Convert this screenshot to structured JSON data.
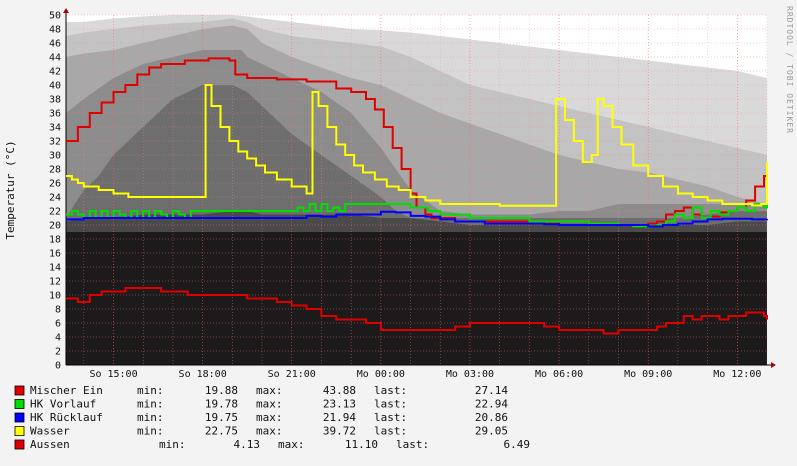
{
  "chart_data": {
    "type": "line",
    "title": "",
    "ylabel": "Temperatur (°C)",
    "xlabel": "",
    "watermark": "RRDTOOL / TOBI OETIKER",
    "ylim": [
      0,
      50
    ],
    "y_ticks": [
      0,
      2,
      4,
      6,
      8,
      10,
      12,
      14,
      16,
      18,
      20,
      22,
      24,
      26,
      28,
      30,
      32,
      34,
      36,
      38,
      40,
      42,
      44,
      46,
      48,
      50
    ],
    "x_range_hours": [
      13.4,
      13.0
    ],
    "x_ticks": [
      {
        "label": "So 15:00",
        "t": 15
      },
      {
        "label": "So 18:00",
        "t": 18
      },
      {
        "label": "So 21:00",
        "t": 21
      },
      {
        "label": "Mo 00:00",
        "t": 24
      },
      {
        "label": "Mo 03:00",
        "t": 27
      },
      {
        "label": "Mo 06:00",
        "t": 30
      },
      {
        "label": "Mo 09:00",
        "t": 33
      },
      {
        "label": "Mo 12:00",
        "t": 36
      }
    ],
    "x_start": 13.4,
    "x_end": 37.0,
    "grid": true,
    "legend_position": "bottom",
    "band_levels": [
      {
        "color": "#1c1a1b",
        "x": [
          13.4,
          37.0
        ],
        "y": [
          19,
          19
        ]
      },
      {
        "color": "#4a4a4a",
        "x": [
          13.4,
          14,
          15,
          16,
          17,
          18,
          19,
          19.5,
          20,
          21,
          22,
          23,
          24,
          25,
          26,
          27,
          28,
          29,
          30,
          31,
          32,
          33,
          34,
          35,
          36,
          37
        ],
        "y": [
          20.5,
          21,
          21,
          21.5,
          21.5,
          21.5,
          22,
          22,
          21.5,
          21.5,
          21.5,
          21.5,
          21,
          21,
          20.5,
          20,
          20,
          20,
          20,
          20,
          20,
          20,
          20,
          20,
          20.5,
          20.5
        ]
      },
      {
        "color": "#6e6e6e",
        "x": [
          13.4,
          14,
          14.5,
          15,
          15.5,
          16,
          16.5,
          17,
          17.5,
          18,
          18.5,
          19,
          19.5,
          20,
          20.5,
          21,
          22,
          23,
          24,
          24.5,
          25,
          26,
          27,
          28,
          29,
          30,
          31,
          32,
          33,
          34,
          35,
          36,
          37
        ],
        "y": [
          21,
          25,
          27,
          30,
          32,
          34,
          36,
          38,
          39,
          40,
          40,
          40,
          39,
          37,
          35,
          33,
          30,
          27,
          24,
          22,
          21,
          21,
          21,
          21,
          21,
          21,
          21,
          21,
          21,
          21,
          21.5,
          22,
          22
        ]
      },
      {
        "color": "#8c8c8c",
        "x": [
          13.4,
          14,
          15,
          16,
          17,
          18,
          19,
          19.3,
          19.5,
          20,
          21,
          22,
          23,
          24,
          25,
          26,
          27,
          28,
          29,
          30,
          31,
          32,
          33,
          34,
          35,
          36,
          37
        ],
        "y": [
          36,
          38,
          41,
          43,
          44,
          45,
          45,
          45,
          44,
          43,
          41,
          39,
          36,
          31,
          25,
          22,
          21.5,
          21.5,
          21.5,
          22,
          22,
          23,
          23,
          23,
          23,
          23,
          23
        ]
      },
      {
        "color": "#a8a8a8",
        "x": [
          13.4,
          14,
          15,
          16,
          17,
          18,
          19,
          19.5,
          20,
          21,
          22,
          23,
          24,
          25,
          26,
          27,
          28,
          29,
          30,
          31,
          32,
          33,
          34,
          35,
          36,
          37
        ],
        "y": [
          44,
          44.5,
          45,
          46,
          47,
          48,
          48.5,
          48,
          46,
          44,
          42.5,
          41,
          40,
          38,
          36,
          34.5,
          33,
          31.5,
          30,
          29,
          28,
          27.5,
          26.5,
          25.5,
          24,
          23
        ]
      },
      {
        "color": "#c3c3c3",
        "x": [
          13.4,
          14,
          15,
          16,
          17,
          18,
          19,
          19.5,
          20,
          21,
          22,
          23,
          24,
          25,
          26,
          27,
          28,
          29,
          30,
          31,
          32,
          33,
          34,
          35,
          36,
          37
        ],
        "y": [
          47,
          47.5,
          48,
          48.5,
          48.8,
          49,
          49.5,
          49,
          48,
          47,
          46.5,
          46,
          45.5,
          44,
          42,
          40,
          39,
          38,
          37,
          36,
          35,
          34,
          33,
          32,
          31,
          30
        ]
      },
      {
        "color": "#d9d9d9",
        "x": [
          13.4,
          14,
          15,
          16,
          17,
          18,
          19,
          19.5,
          20,
          21,
          22,
          23,
          24,
          25,
          26,
          27,
          28,
          29,
          30,
          31,
          32,
          33,
          34,
          35,
          36,
          37
        ],
        "y": [
          49,
          49,
          49.5,
          49.8,
          50,
          50,
          50,
          49.8,
          49.5,
          49,
          48.5,
          48,
          47.8,
          47.5,
          47,
          46.5,
          46,
          45.5,
          45,
          44.5,
          44,
          43.5,
          43,
          42.5,
          42,
          41
        ]
      }
    ],
    "series": [
      {
        "name": "Mischer Ein",
        "color": "#e00000",
        "x": [
          13.4,
          13.8,
          14.2,
          14.6,
          15.0,
          15.4,
          15.8,
          16.2,
          16.6,
          17.0,
          17.4,
          17.8,
          18.2,
          18.6,
          18.9,
          19.1,
          19.5,
          20,
          20.5,
          21,
          21.5,
          22,
          22.5,
          23,
          23.5,
          23.8,
          24.1,
          24.4,
          24.7,
          25.0,
          25.2,
          25.5,
          25.7,
          26,
          26.5,
          27,
          27.5,
          28,
          28.5,
          29,
          29.5,
          30,
          30.5,
          31,
          31.5,
          32,
          32.5,
          33,
          33.3,
          33.6,
          33.9,
          34.2,
          34.5,
          34.8,
          35.1,
          35.4,
          35.7,
          36.0,
          36.3,
          36.6,
          36.9,
          37.0
        ],
        "y": [
          32,
          34,
          36,
          37.5,
          39,
          40,
          41.5,
          42.5,
          43,
          43,
          43.5,
          43.5,
          43.8,
          43.8,
          43.5,
          41.5,
          41,
          41,
          40.8,
          40.8,
          40.5,
          40.5,
          39.5,
          39,
          38,
          36.5,
          34,
          31,
          28,
          24.5,
          22.5,
          21.5,
          21,
          21,
          20.5,
          20.5,
          20.5,
          20.5,
          20.5,
          20.2,
          20.2,
          20.5,
          20.5,
          20.2,
          20,
          20,
          20,
          20.2,
          20.5,
          21.5,
          22,
          22.5,
          21.5,
          21,
          21.2,
          21.8,
          22,
          22.5,
          23.5,
          25.5,
          27,
          27.14
        ]
      },
      {
        "name": "HK Vorlauf",
        "color": "#00e000",
        "x": [
          13.4,
          13.6,
          13.8,
          14.0,
          14.2,
          14.4,
          14.6,
          14.8,
          15.0,
          15.2,
          15.4,
          15.6,
          15.8,
          16,
          16.2,
          16.4,
          16.6,
          16.8,
          17,
          17.2,
          17.4,
          17.6,
          17.8,
          18,
          18.5,
          19,
          19.5,
          20,
          20.5,
          21,
          21.2,
          21.4,
          21.6,
          21.8,
          22,
          22.2,
          22.4,
          22.6,
          22.8,
          23,
          23.5,
          24,
          24.5,
          25,
          25.3,
          25.6,
          26,
          26.5,
          27,
          27.5,
          28,
          28.5,
          29,
          29.5,
          30,
          30.5,
          31,
          31.5,
          32,
          32.5,
          33,
          33.3,
          33.6,
          33.9,
          34.2,
          34.5,
          34.8,
          35.1,
          35.4,
          35.7,
          36,
          36.3,
          36.6,
          36.9,
          37.0
        ],
        "y": [
          21.5,
          22,
          21.5,
          21,
          22,
          21,
          22,
          21,
          22,
          21.5,
          21,
          22,
          21,
          22,
          21,
          22,
          21.5,
          21,
          22,
          21.5,
          21,
          22,
          22,
          22,
          22,
          22,
          22,
          22,
          22,
          22,
          22.5,
          22,
          23,
          22,
          23,
          22,
          22.5,
          22,
          23,
          23,
          23,
          23,
          23,
          22.5,
          22.5,
          22,
          21.5,
          21.5,
          21,
          21,
          21,
          21,
          20.5,
          20.5,
          20.5,
          20.5,
          20.2,
          20.2,
          20,
          19.8,
          19.9,
          20,
          20.5,
          21.5,
          21,
          22.5,
          21,
          22,
          21.5,
          22,
          22.5,
          22,
          23,
          22.5,
          22.94
        ]
      },
      {
        "name": "HK Rücklauf",
        "color": "#0000ff",
        "x": [
          13.4,
          14,
          15,
          16,
          17,
          18,
          19,
          19.5,
          20,
          21,
          21.5,
          22,
          22.5,
          23,
          23.5,
          24,
          24.5,
          25,
          25.5,
          26,
          26.5,
          27,
          27.5,
          28,
          28.5,
          29,
          29.5,
          30,
          30.5,
          31,
          31.5,
          32,
          32.5,
          33,
          33.5,
          34,
          34.5,
          35,
          35.5,
          36,
          36.5,
          37.0
        ],
        "y": [
          20.8,
          21,
          21,
          21,
          21,
          21,
          21,
          21,
          21,
          21,
          21.3,
          21.2,
          21.5,
          21.5,
          21.5,
          21.9,
          21.8,
          21.3,
          21.2,
          20.8,
          20.5,
          20.5,
          20.2,
          20.2,
          20.2,
          20.2,
          20.1,
          20,
          20,
          20,
          20,
          20,
          20,
          19.8,
          20,
          20.2,
          20.5,
          20.8,
          20.9,
          20.9,
          20.8,
          20.86
        ]
      },
      {
        "name": "Wasser",
        "color": "#ffff00",
        "x": [
          13.4,
          13.6,
          13.8,
          14.0,
          14.5,
          15,
          15.5,
          16,
          16.5,
          17,
          17.5,
          18,
          18.1,
          18.3,
          18.6,
          18.9,
          19.2,
          19.5,
          19.8,
          20.1,
          20.5,
          21,
          21.5,
          21.7,
          21.9,
          22.2,
          22.5,
          22.8,
          23.1,
          23.4,
          23.8,
          24.2,
          24.6,
          25,
          25.5,
          26,
          26.5,
          27,
          27.5,
          28,
          28.5,
          29,
          29.5,
          29.8,
          29.9,
          30.2,
          30.5,
          30.8,
          31.1,
          31.3,
          31.5,
          31.8,
          32.1,
          32.5,
          33,
          33.5,
          34,
          34.5,
          35,
          35.5,
          36,
          36.5,
          36.8,
          37.0
        ],
        "y": [
          27,
          26.5,
          26,
          25.5,
          25,
          24.5,
          24,
          24,
          24,
          24,
          24,
          24,
          40,
          37,
          34,
          32,
          30.5,
          29.5,
          28.5,
          27.5,
          26.5,
          25.5,
          24.5,
          39,
          37,
          34,
          31.5,
          30,
          28.5,
          27.5,
          26.5,
          25.5,
          25,
          24,
          23.5,
          23,
          23,
          23,
          23,
          22.75,
          22.75,
          22.75,
          22.75,
          22.75,
          38,
          35,
          32,
          29,
          30,
          38,
          37,
          34,
          31.5,
          28.5,
          27,
          25.5,
          24.5,
          24,
          23.5,
          23,
          23,
          22.8,
          23,
          29.05
        ]
      },
      {
        "name": "Aussen",
        "color": "#e00000",
        "x": [
          13.4,
          13.8,
          14.2,
          14.6,
          15.0,
          15.4,
          15.8,
          16.2,
          16.6,
          17,
          17.5,
          18,
          18.5,
          19,
          19.5,
          20,
          20.5,
          21,
          21.5,
          22,
          22.5,
          23,
          23.5,
          24,
          24.5,
          25,
          25.5,
          26,
          26.5,
          27,
          27.5,
          28,
          28.5,
          29,
          29.5,
          30,
          30.5,
          31,
          31.5,
          32,
          32.5,
          33,
          33.3,
          33.6,
          33.9,
          34.2,
          34.5,
          34.8,
          35.1,
          35.4,
          35.7,
          36,
          36.3,
          36.6,
          36.9,
          37.0
        ],
        "y": [
          9.5,
          9,
          10,
          10.5,
          10.5,
          11,
          11,
          11,
          10.5,
          10.5,
          10,
          10,
          10,
          10,
          9.5,
          9.5,
          9,
          8.5,
          8,
          7,
          6.5,
          6.5,
          6,
          5,
          5,
          5,
          5,
          5,
          5.5,
          6,
          6,
          6,
          6,
          6,
          5.5,
          5,
          5,
          5,
          4.5,
          5,
          5,
          5,
          5.5,
          6,
          6,
          7,
          6.5,
          7,
          7,
          6.5,
          7,
          7,
          7.5,
          7.5,
          7,
          6.49
        ]
      }
    ]
  },
  "legend": [
    {
      "name": "Mischer Ein",
      "color": "#e00000",
      "min_label": "min:",
      "min": "19.88",
      "max_label": "max:",
      "max": "43.88",
      "last_label": "last:",
      "last": "27.14"
    },
    {
      "name": "HK Vorlauf",
      "color": "#00e000",
      "min_label": "min:",
      "min": "19.78",
      "max_label": "max:",
      "max": "23.13",
      "last_label": "last:",
      "last": "22.94"
    },
    {
      "name": "HK Rücklauf",
      "color": "#0000ff",
      "min_label": "min:",
      "min": "19.75",
      "max_label": "max:",
      "max": "21.94",
      "last_label": "last:",
      "last": "20.86"
    },
    {
      "name": "Wasser",
      "color": "#ffff00",
      "min_label": "min:",
      "min": "22.75",
      "max_label": "max:",
      "max": "39.72",
      "last_label": "last:",
      "last": "29.05"
    },
    {
      "name": "Aussen",
      "color": "#e00000",
      "min_label": "min:",
      "min": "4.13",
      "max_label": "max:",
      "max": "11.10",
      "last_label": "last:",
      "last": "6.49"
    }
  ]
}
